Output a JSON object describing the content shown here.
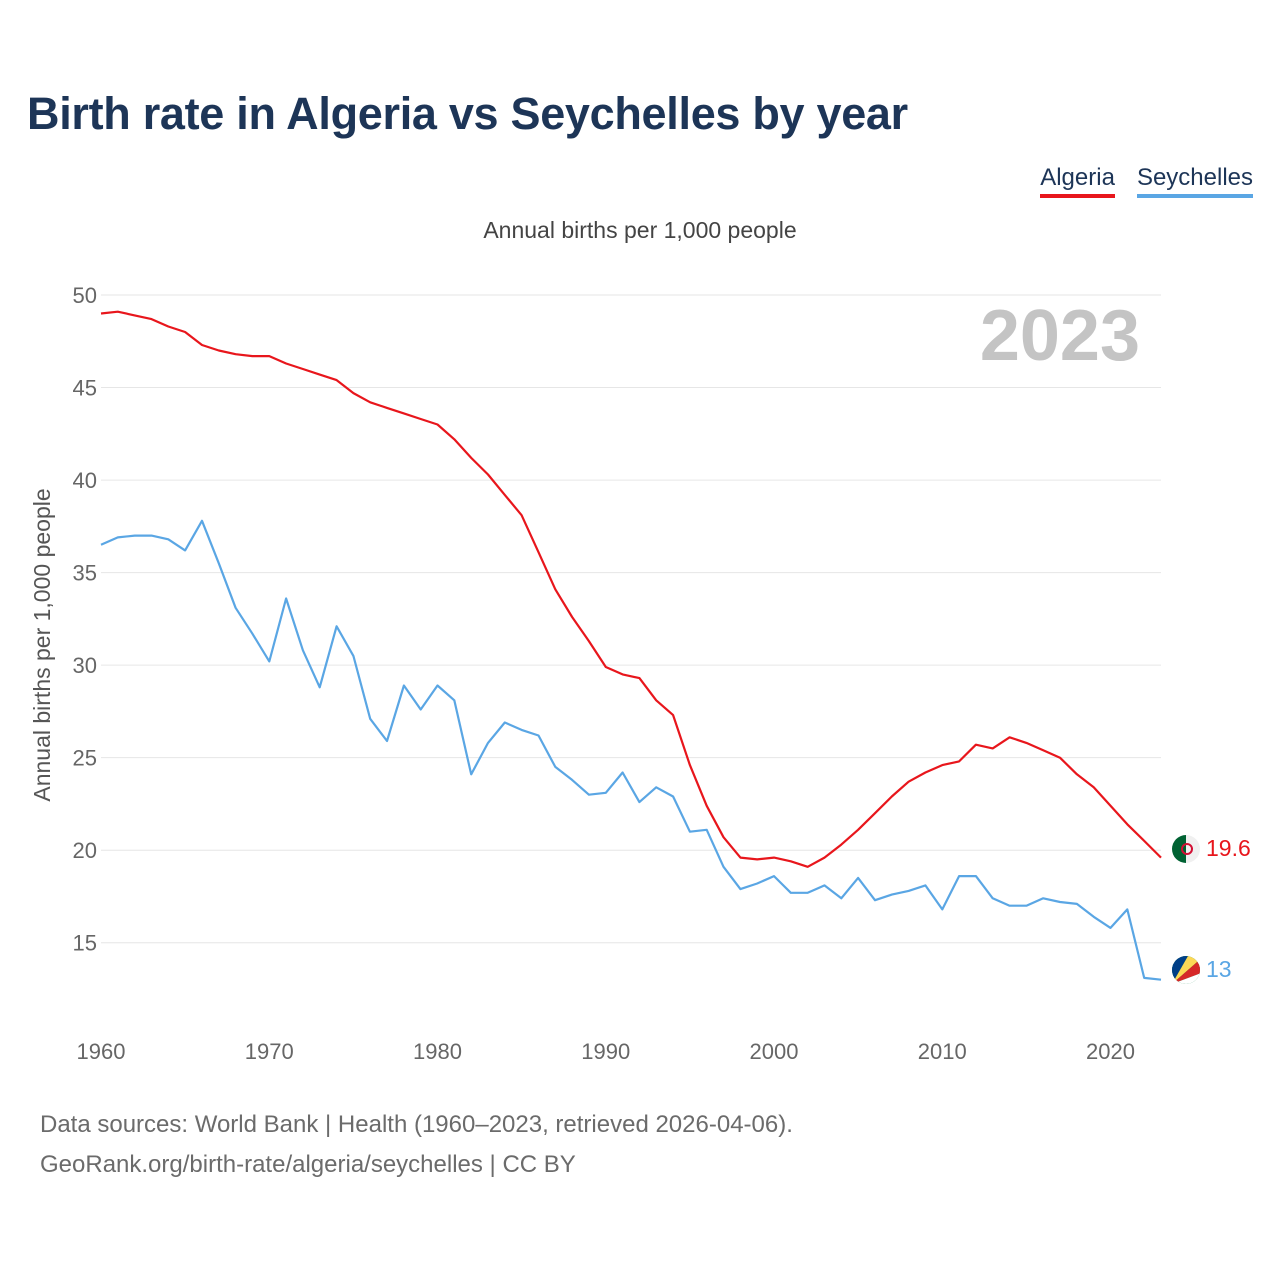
{
  "header": {
    "title": "Birth rate in Algeria vs Seychelles by year",
    "subtitle": "Annual births per 1,000 people"
  },
  "legend": {
    "algeria": "Algeria",
    "seychelles": "Seychelles"
  },
  "footer": {
    "line1": "Data sources: World Bank | Health (1960–2023, retrieved 2026-04-06).",
    "line2": "GeoRank.org/birth-rate/algeria/seychelles | CC BY"
  },
  "colors": {
    "algeria": "#e8161c",
    "seychelles": "#5aa6e4",
    "grid": "#e6e6e6"
  },
  "chart_data": {
    "type": "line",
    "title": "Birth rate in Algeria vs Seychelles by year",
    "ylabel": "Annual births per 1,000 people",
    "xlabel": "",
    "year_label": "2023",
    "xlim": [
      1960,
      2023
    ],
    "ylim": [
      10.5,
      50
    ],
    "x_ticks": [
      1960,
      1970,
      1980,
      1990,
      2000,
      2010,
      2020
    ],
    "y_ticks": [
      15,
      20,
      25,
      30,
      35,
      40,
      45,
      50
    ],
    "x": [
      1960,
      1961,
      1962,
      1963,
      1964,
      1965,
      1966,
      1967,
      1968,
      1969,
      1970,
      1971,
      1972,
      1973,
      1974,
      1975,
      1976,
      1977,
      1978,
      1979,
      1980,
      1981,
      1982,
      1983,
      1984,
      1985,
      1986,
      1987,
      1988,
      1989,
      1990,
      1991,
      1992,
      1993,
      1994,
      1995,
      1996,
      1997,
      1998,
      1999,
      2000,
      2001,
      2002,
      2003,
      2004,
      2005,
      2006,
      2007,
      2008,
      2009,
      2010,
      2011,
      2012,
      2013,
      2014,
      2015,
      2016,
      2017,
      2018,
      2019,
      2020,
      2021,
      2022,
      2023
    ],
    "series": [
      {
        "name": "Algeria",
        "end_label": "19.6",
        "values": [
          49.0,
          49.1,
          48.9,
          48.7,
          48.3,
          48.0,
          47.3,
          47.0,
          46.8,
          46.7,
          46.7,
          46.3,
          46.0,
          45.7,
          45.4,
          44.7,
          44.2,
          43.9,
          43.6,
          43.3,
          43.0,
          42.2,
          41.2,
          40.3,
          39.2,
          38.1,
          36.1,
          34.1,
          32.6,
          31.3,
          29.9,
          29.5,
          29.3,
          28.1,
          27.3,
          24.6,
          22.4,
          20.7,
          19.6,
          19.5,
          19.6,
          19.4,
          19.1,
          19.6,
          20.3,
          21.1,
          22.0,
          22.9,
          23.7,
          24.2,
          24.6,
          24.8,
          25.7,
          25.5,
          26.1,
          25.8,
          25.4,
          25.0,
          24.1,
          23.4,
          22.4,
          21.4,
          20.5,
          19.6
        ]
      },
      {
        "name": "Seychelles",
        "end_label": "13",
        "values": [
          36.5,
          36.9,
          37.0,
          37.0,
          36.8,
          36.2,
          37.8,
          35.5,
          33.1,
          31.7,
          30.2,
          33.6,
          30.8,
          28.8,
          32.1,
          30.5,
          27.1,
          25.9,
          28.9,
          27.6,
          28.9,
          28.1,
          24.1,
          25.8,
          26.9,
          26.5,
          26.2,
          24.5,
          23.8,
          23.0,
          23.1,
          24.2,
          22.6,
          23.4,
          22.9,
          21.0,
          21.1,
          19.1,
          17.9,
          18.2,
          18.6,
          17.7,
          17.7,
          18.1,
          17.4,
          18.5,
          17.3,
          17.6,
          17.8,
          18.1,
          16.8,
          18.6,
          18.6,
          17.4,
          17.0,
          17.0,
          17.4,
          17.2,
          17.1,
          16.4,
          15.8,
          16.8,
          13.1,
          13.0
        ]
      }
    ]
  }
}
